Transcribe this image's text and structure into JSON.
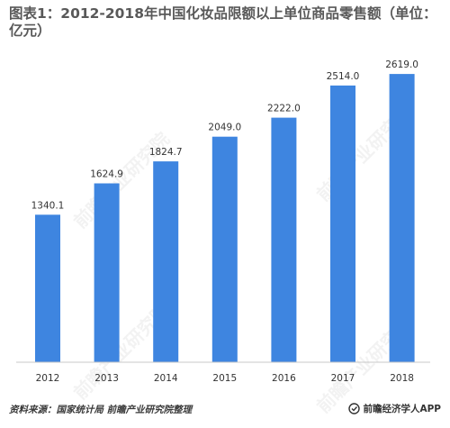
{
  "title": "图表1：2012-2018年中国化妆品限额以上单位商品零售额（单位：亿元）",
  "source": "资料来源：国家统计局 前瞻产业研究院整理",
  "brand": "前瞻经济学人APP",
  "watermark": "前瞻产业研究院",
  "colors": {
    "bar": "#3e85e0",
    "title": "#595959"
  },
  "chart_data": {
    "type": "bar",
    "title": "图表1：2012-2018年中国化妆品限额以上单位商品零售额（单位：亿元）",
    "categories": [
      "2012",
      "2013",
      "2014",
      "2015",
      "2016",
      "2017",
      "2018"
    ],
    "values": [
      1340.1,
      1624.9,
      1824.7,
      2049.0,
      2222.0,
      2514.0,
      2619.0
    ],
    "value_labels": [
      "1340.1",
      "1624.9",
      "1824.7",
      "2049.0",
      "2222.0",
      "2514.0",
      "2619.0"
    ],
    "grid": false,
    "legend": "none"
  }
}
